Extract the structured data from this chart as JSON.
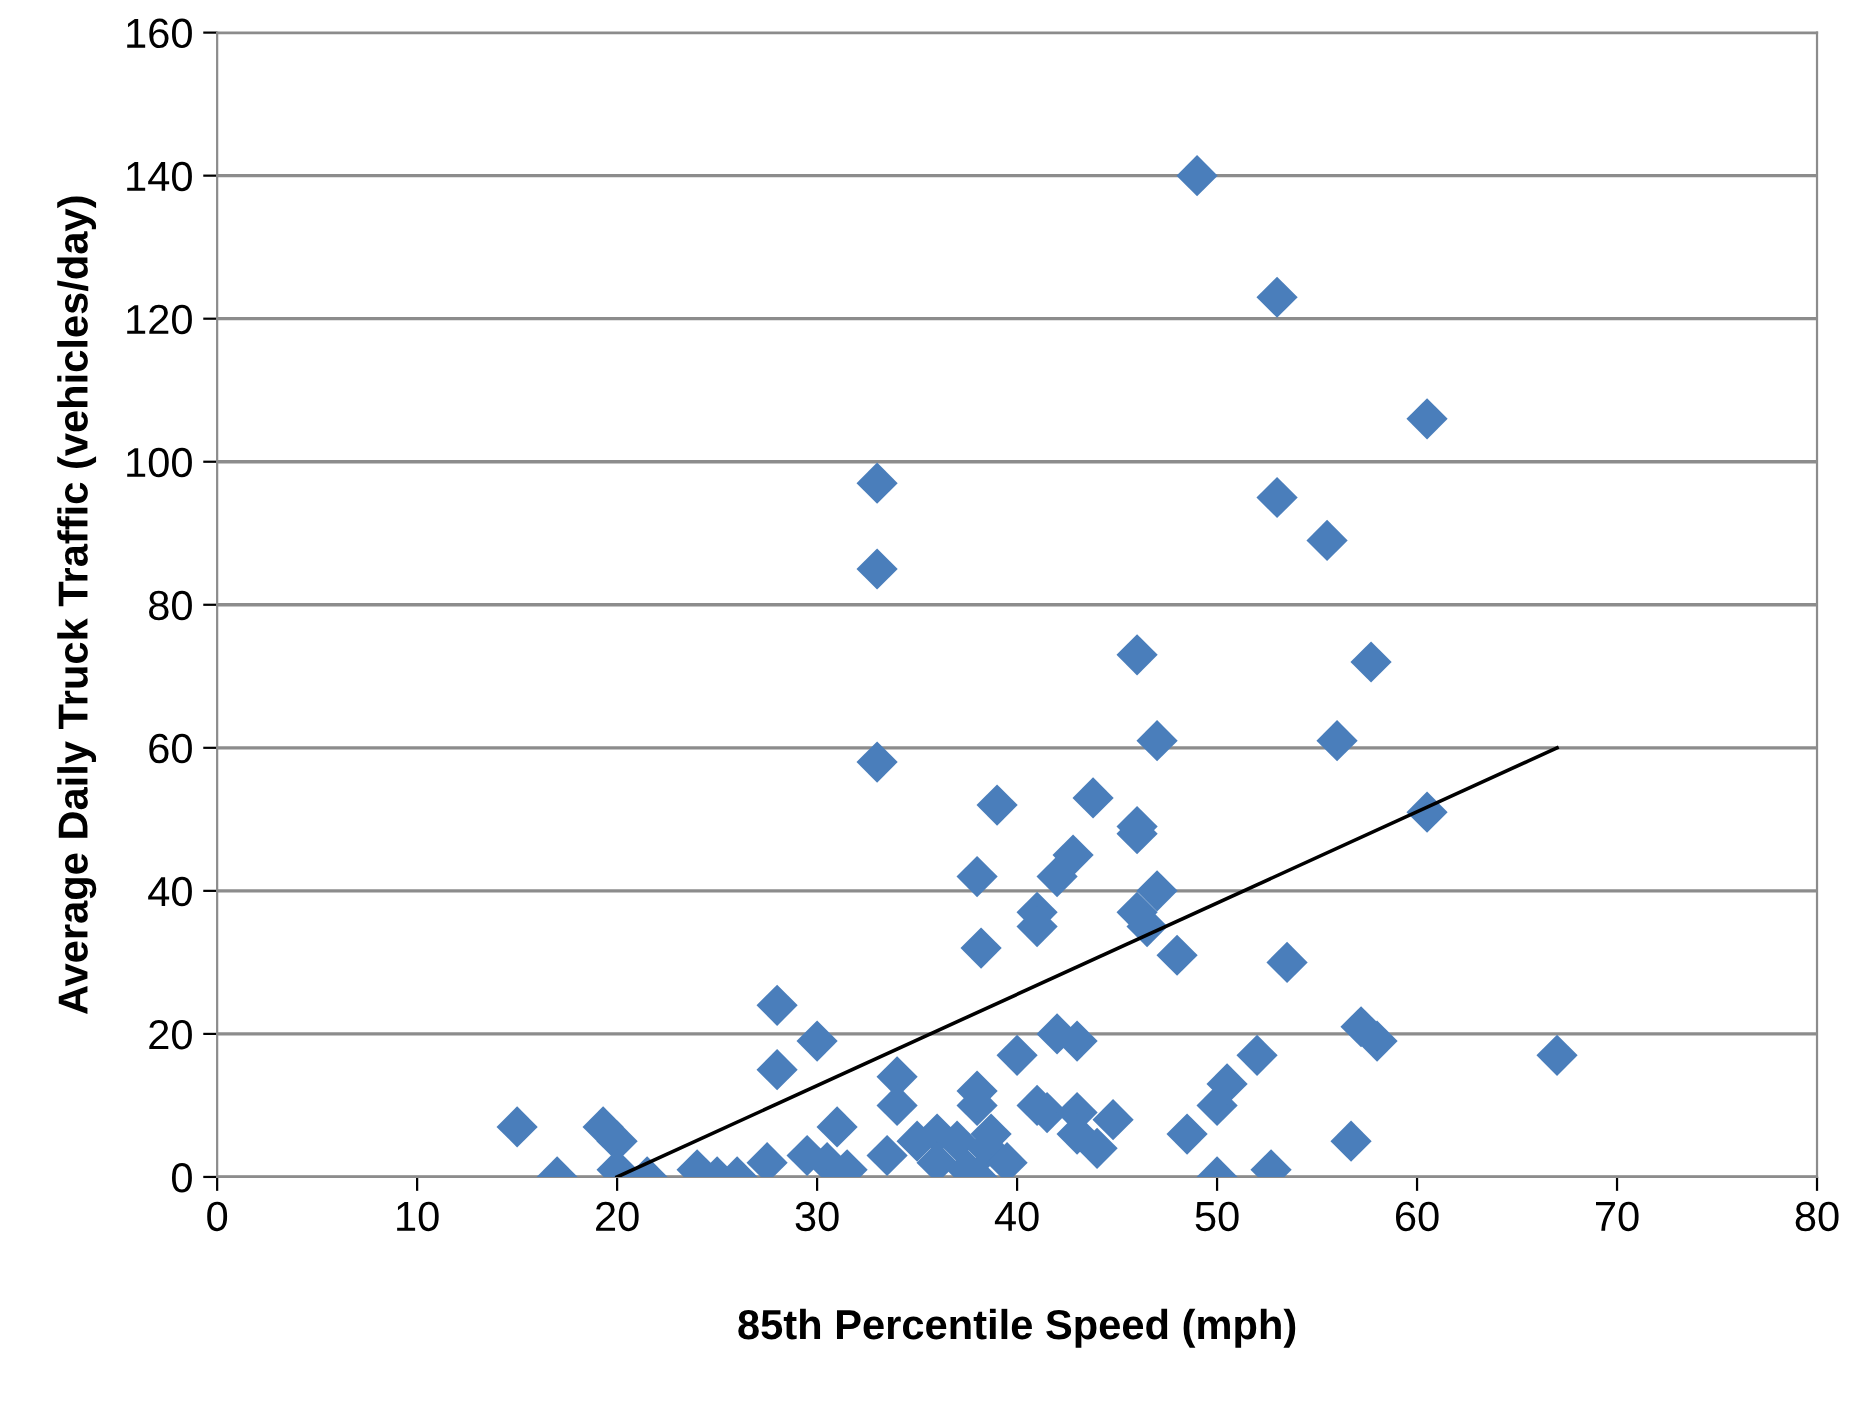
{
  "chart_data": {
    "type": "scatter",
    "xlabel": "85th Percentile Speed (mph)",
    "ylabel": "Average Daily Truck Traffic (vehicles/day)",
    "xlim": [
      0,
      80
    ],
    "ylim": [
      0,
      160
    ],
    "xticks": [
      0,
      10,
      20,
      30,
      40,
      50,
      60,
      70,
      80
    ],
    "yticks": [
      0,
      20,
      40,
      60,
      80,
      100,
      120,
      140,
      160
    ],
    "grid": "y",
    "marker": "diamond",
    "series": [
      {
        "color": "#4a7ebb",
        "x": [
          15,
          17,
          19.3,
          20,
          20,
          21.5,
          24,
          25,
          26,
          27.5,
          28,
          28,
          29.5,
          30,
          30.5,
          31.5,
          31,
          33,
          33,
          33,
          33.5,
          34,
          34,
          35,
          36,
          36,
          37,
          37.5,
          38,
          38,
          38,
          38,
          38.2,
          38.5,
          38.7,
          39,
          39.5,
          40,
          41,
          41,
          41,
          41.5,
          42,
          42,
          42.8,
          43,
          43,
          43,
          43.8,
          44,
          44.8,
          46,
          46,
          46,
          46,
          46.5,
          47,
          47,
          48,
          48.5,
          49,
          50,
          50,
          50.5,
          52,
          52.7,
          53,
          53,
          53.5,
          55.5,
          56,
          56.7,
          57.2,
          57.7,
          58,
          60.5,
          60.5,
          67
        ],
        "values": [
          7,
          0,
          7,
          5,
          1,
          0,
          1,
          0,
          0,
          2,
          24,
          15,
          3,
          19,
          2,
          1,
          7,
          97,
          85,
          58,
          3,
          14,
          10,
          5,
          6,
          2,
          5,
          1,
          10,
          12,
          42,
          0,
          32,
          4,
          6,
          52,
          2,
          17,
          37,
          35,
          10,
          9,
          42,
          20,
          45,
          19,
          9,
          6,
          53,
          4,
          8,
          73,
          49,
          48,
          37,
          35,
          61,
          40,
          31,
          6,
          140,
          10,
          0,
          13,
          17,
          1,
          123,
          95,
          30,
          89,
          61,
          5,
          21,
          72,
          19,
          106,
          51,
          17
        ]
      },
      {
        "type": "line",
        "color": "#000000",
        "marker": "none",
        "x": [
          20,
          67
        ],
        "values": [
          0,
          60
        ]
      }
    ]
  }
}
